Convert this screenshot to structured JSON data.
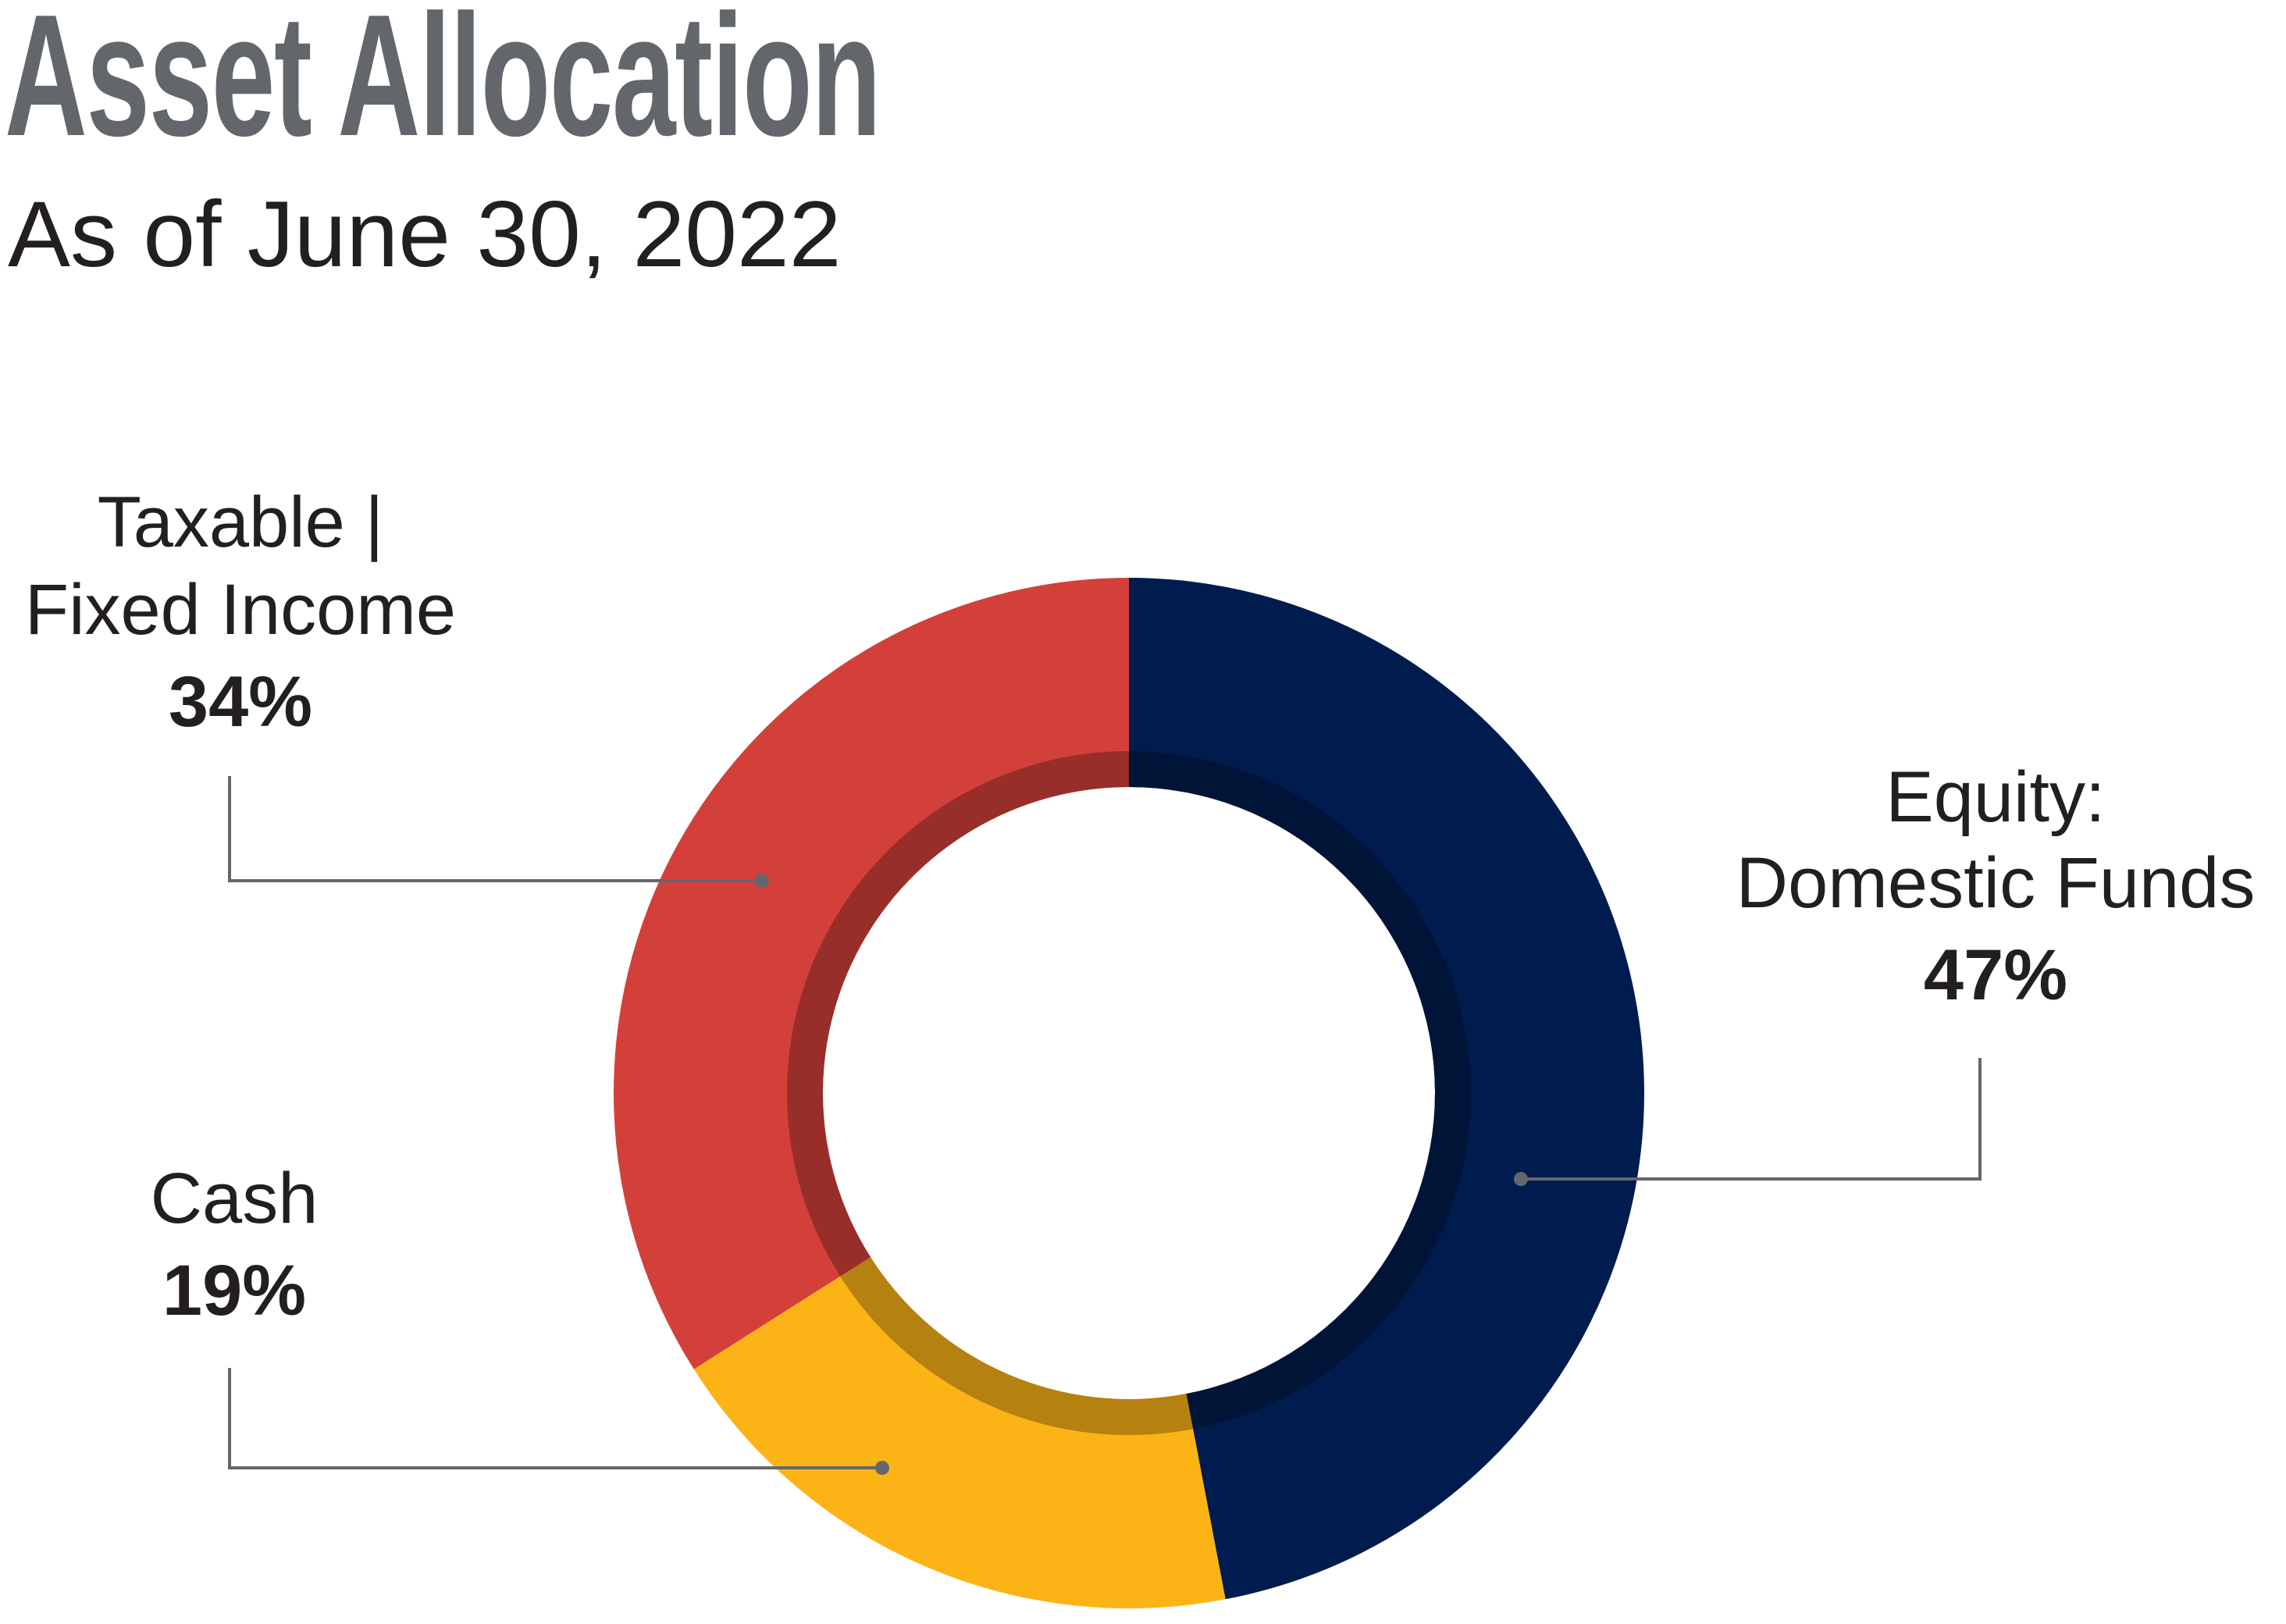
{
  "title": "Asset Allocation",
  "subtitle": "As of June 30, 2022",
  "chart_data": {
    "type": "pie",
    "subtype": "donut",
    "title": "Asset Allocation",
    "subtitle": "As of June 30, 2022",
    "legend": "none",
    "slices": [
      {
        "label_lines": [
          "Equity:",
          "Domestic Funds"
        ],
        "value": 47,
        "value_label": "47%",
        "color": "#001c4e"
      },
      {
        "label_lines": [
          "Cash"
        ],
        "value": 19,
        "value_label": "19%",
        "color": "#fcb316"
      },
      {
        "label_lines": [
          "Taxable |",
          "Fixed Income"
        ],
        "value": 34,
        "value_label": "34%",
        "color": "#d3403a"
      }
    ]
  },
  "colors": {
    "title": "#63676c",
    "text": "#231f20",
    "leader_line": "#63676c",
    "background": "#ffffff"
  }
}
